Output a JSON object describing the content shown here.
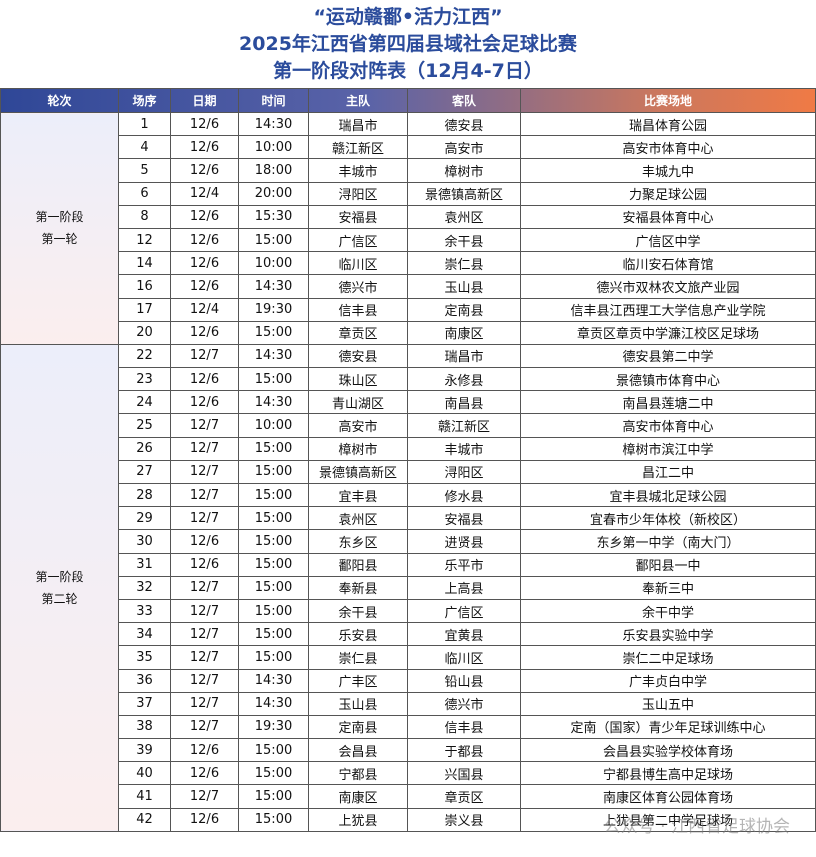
{
  "title": {
    "lines": [
      "“运动赣鄱•活力江西”",
      "2025年江西省第四届县域社会足球比赛",
      "第一阶段对阵表（12月4-7日）"
    ]
  },
  "table": {
    "header": [
      "轮次",
      "场序",
      "日期",
      "时间",
      "主队",
      "客队",
      "比赛场地"
    ],
    "rounds": [
      {
        "label": [
          "第一阶段",
          "第一轮"
        ],
        "matches": [
          [
            "1",
            "12/6",
            "14:30",
            "瑞昌市",
            "德安县",
            "瑞昌体育公园"
          ],
          [
            "4",
            "12/6",
            "10:00",
            "赣江新区",
            "高安市",
            "高安市体育中心"
          ],
          [
            "5",
            "12/6",
            "18:00",
            "丰城市",
            "樟树市",
            "丰城九中"
          ],
          [
            "6",
            "12/4",
            "20:00",
            "浔阳区",
            "景德镇高新区",
            "力聚足球公园"
          ],
          [
            "8",
            "12/6",
            "15:30",
            "安福县",
            "袁州区",
            "安福县体育中心"
          ],
          [
            "12",
            "12/6",
            "15:00",
            "广信区",
            "余干县",
            "广信区中学"
          ],
          [
            "14",
            "12/6",
            "10:00",
            "临川区",
            "崇仁县",
            "临川安石体育馆"
          ],
          [
            "16",
            "12/6",
            "14:30",
            "德兴市",
            "玉山县",
            "德兴市双林农文旅产业园"
          ],
          [
            "17",
            "12/4",
            "19:30",
            "信丰县",
            "定南县",
            "信丰县江西理工大学信息产业学院"
          ],
          [
            "20",
            "12/6",
            "15:00",
            "章贡区",
            "南康区",
            "章贡区章贡中学濂江校区足球场"
          ]
        ]
      },
      {
        "label": [
          "第一阶段",
          "第二轮"
        ],
        "matches": [
          [
            "22",
            "12/7",
            "14:30",
            "德安县",
            "瑞昌市",
            "德安县第二中学"
          ],
          [
            "23",
            "12/6",
            "15:00",
            "珠山区",
            "永修县",
            "景德镇市体育中心"
          ],
          [
            "24",
            "12/6",
            "14:30",
            "青山湖区",
            "南昌县",
            "南昌县莲塘二中"
          ],
          [
            "25",
            "12/7",
            "10:00",
            "高安市",
            "赣江新区",
            "高安市体育中心"
          ],
          [
            "26",
            "12/7",
            "15:00",
            "樟树市",
            "丰城市",
            "樟树市滨江中学"
          ],
          [
            "27",
            "12/7",
            "15:00",
            "景德镇高新区",
            "浔阳区",
            "昌江二中"
          ],
          [
            "28",
            "12/7",
            "15:00",
            "宜丰县",
            "修水县",
            "宜丰县城北足球公园"
          ],
          [
            "29",
            "12/7",
            "15:00",
            "袁州区",
            "安福县",
            "宜春市少年体校（新校区）"
          ],
          [
            "30",
            "12/6",
            "15:00",
            "东乡区",
            "进贤县",
            "东乡第一中学（南大门）"
          ],
          [
            "31",
            "12/6",
            "15:00",
            "鄱阳县",
            "乐平市",
            "鄱阳县一中"
          ],
          [
            "32",
            "12/7",
            "15:00",
            "奉新县",
            "上高县",
            "奉新三中"
          ],
          [
            "33",
            "12/7",
            "15:00",
            "余干县",
            "广信区",
            "余干中学"
          ],
          [
            "34",
            "12/7",
            "15:00",
            "乐安县",
            "宜黄县",
            "乐安县实验中学"
          ],
          [
            "35",
            "12/7",
            "15:00",
            "崇仁县",
            "临川区",
            "崇仁二中足球场"
          ],
          [
            "36",
            "12/7",
            "14:30",
            "广丰区",
            "铅山县",
            "广丰贞白中学"
          ],
          [
            "37",
            "12/7",
            "14:30",
            "玉山县",
            "德兴市",
            "玉山五中"
          ],
          [
            "38",
            "12/7",
            "19:30",
            "定南县",
            "信丰县",
            "定南（国家）青少年足球训练中心"
          ],
          [
            "39",
            "12/6",
            "15:00",
            "会昌县",
            "于都县",
            "会昌县实验学校体育场"
          ],
          [
            "40",
            "12/6",
            "15:00",
            "宁都县",
            "兴国县",
            "宁都县博生高中足球场"
          ],
          [
            "41",
            "12/7",
            "15:00",
            "南康区",
            "章贡区",
            "南康区体育公园体育场"
          ],
          [
            "42",
            "12/6",
            "15:00",
            "上犹县",
            "崇义县",
            "上犹县第二中学足球场"
          ]
        ]
      }
    ]
  },
  "watermark": "公众号 · 江西省足球协会"
}
